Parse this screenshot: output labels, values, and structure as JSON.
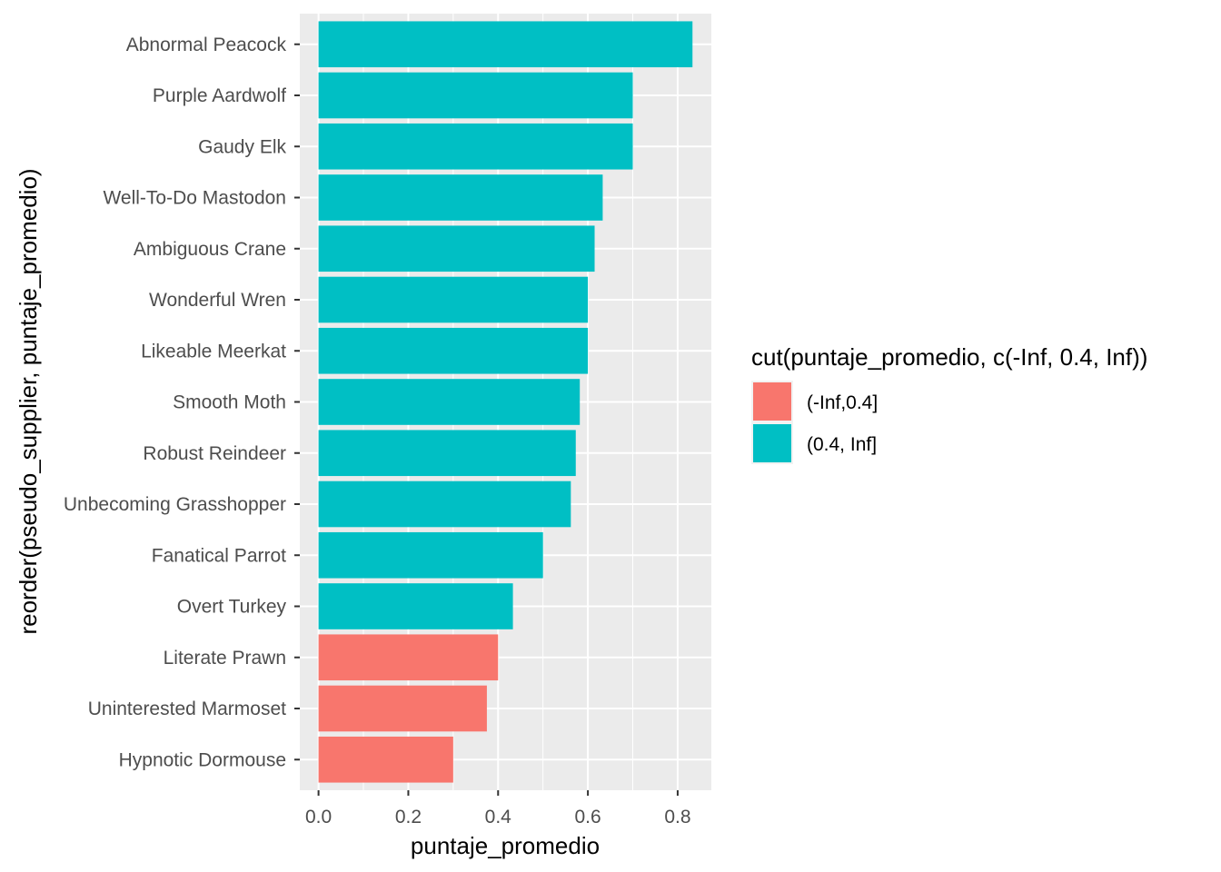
{
  "chart_data": {
    "type": "bar",
    "orientation": "horizontal",
    "categories": [
      "Abnormal Peacock",
      "Purple Aardwolf",
      "Gaudy Elk",
      "Well-To-Do Mastodon",
      "Ambiguous Crane",
      "Wonderful Wren",
      "Likeable Meerkat",
      "Smooth Moth",
      "Robust Reindeer",
      "Unbecoming Grasshopper",
      "Fanatical Parrot",
      "Overt Turkey",
      "Literate Prawn",
      "Uninterested Marmoset",
      "Hypnotic Dormouse"
    ],
    "values": [
      0.833,
      0.7,
      0.7,
      0.633,
      0.615,
      0.6,
      0.6,
      0.582,
      0.573,
      0.562,
      0.5,
      0.433,
      0.4,
      0.375,
      0.3
    ],
    "groups": [
      "(0.4, Inf]",
      "(0.4, Inf]",
      "(0.4, Inf]",
      "(0.4, Inf]",
      "(0.4, Inf]",
      "(0.4, Inf]",
      "(0.4, Inf]",
      "(0.4, Inf]",
      "(0.4, Inf]",
      "(0.4, Inf]",
      "(0.4, Inf]",
      "(0.4, Inf]",
      "(-Inf,0.4]",
      "(-Inf,0.4]",
      "(-Inf,0.4]"
    ],
    "xlabel": "puntaje_promedio",
    "ylabel": "reorder(pseudo_supplier, puntaje_promedio)",
    "xlim": [
      -0.0417,
      0.875
    ],
    "xticks": [
      0.0,
      0.2,
      0.4,
      0.6,
      0.8
    ],
    "xtick_labels": [
      "0.0",
      "0.2",
      "0.4",
      "0.6",
      "0.8"
    ],
    "grid": true,
    "legend": {
      "title": "cut(puntaje_promedio, c(-Inf, 0.4, Inf))",
      "position": "right",
      "entries": [
        {
          "label": "(-Inf,0.4]",
          "color": "#F8766D"
        },
        {
          "label": "(0.4, Inf]",
          "color": "#00BFC4"
        }
      ]
    }
  }
}
